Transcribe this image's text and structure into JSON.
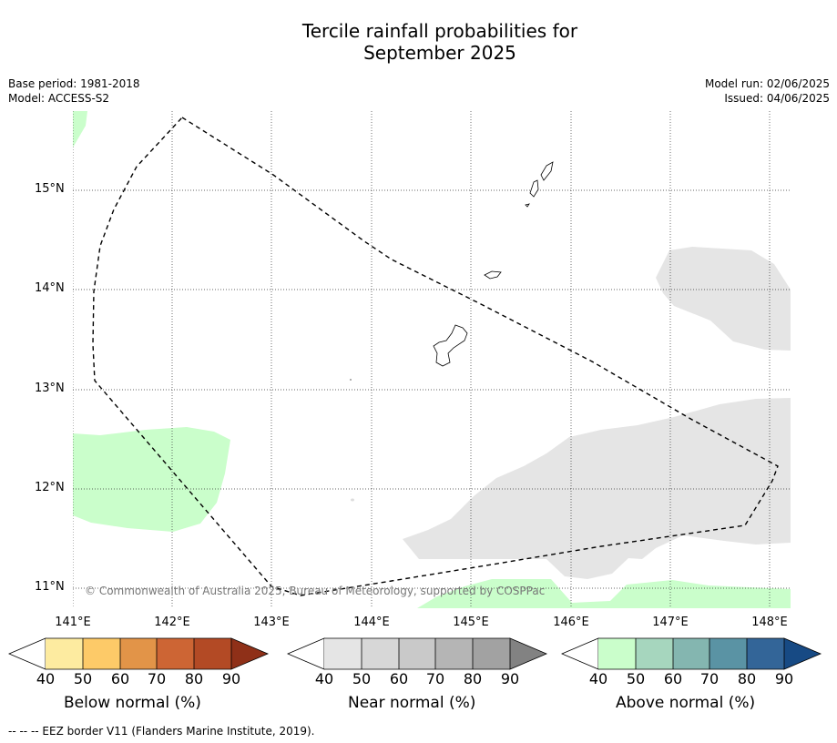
{
  "title": {
    "line1": "Tercile rainfall probabilities for",
    "line2": "September 2025"
  },
  "meta": {
    "base_period": "Base period: 1981-2018",
    "model": "Model: ACCESS-S2",
    "model_run": "Model run: 02/06/2025",
    "issued": "Issued: 04/06/2025"
  },
  "map": {
    "lat_labels": [
      "15°N",
      "14°N",
      "13°N",
      "12°N",
      "11°N"
    ],
    "lon_labels": [
      "141°E",
      "142°E",
      "143°E",
      "144°E",
      "145°E",
      "146°E",
      "147°E",
      "148°E"
    ],
    "copyright": "© Commonwealth of Australia 2025, Bureau of Meteorology, supported by COSPPac",
    "colors": {
      "above_normal_light": "#cafecb",
      "near_normal_light": "#e5e5e5",
      "eez_border": "#000000"
    }
  },
  "colorbars": [
    {
      "title": "Below normal (%)",
      "ticks": [
        "40",
        "50",
        "60",
        "70",
        "80",
        "90"
      ],
      "colors": [
        "#ffffff",
        "#fdeba0",
        "#fdca68",
        "#e29448",
        "#cd6534",
        "#b34a25",
        "#8f3018"
      ]
    },
    {
      "title": "Near normal (%)",
      "ticks": [
        "40",
        "50",
        "60",
        "70",
        "80",
        "90"
      ],
      "colors": [
        "#ffffff",
        "#e5e5e5",
        "#d7d7d7",
        "#c9c9c9",
        "#b5b5b5",
        "#a2a2a2",
        "#828282"
      ]
    },
    {
      "title": "Above normal (%)",
      "ticks": [
        "40",
        "50",
        "60",
        "70",
        "80",
        "90"
      ],
      "colors": [
        "#ffffff",
        "#cafecb",
        "#a6d6be",
        "#84b6b0",
        "#5a93a4",
        "#336598",
        "#174a84"
      ]
    }
  ],
  "footnote": "--  --  -- EEZ border V11 (Flanders Marine Institute, 2019)."
}
